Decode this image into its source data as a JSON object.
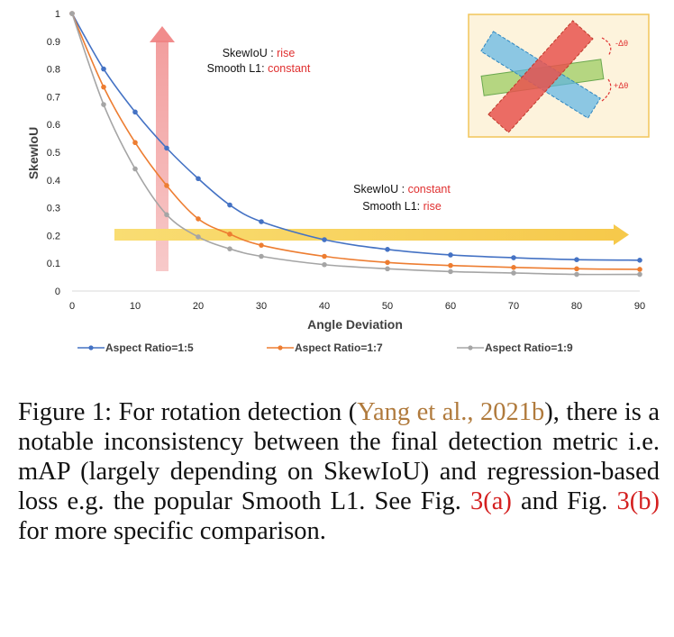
{
  "chart_data": {
    "type": "line",
    "x": [
      0,
      5,
      10,
      15,
      20,
      25,
      30,
      40,
      50,
      60,
      70,
      80,
      90
    ],
    "series": [
      {
        "name": "Aspect Ratio=1:5",
        "color": "#4472c4",
        "values": [
          1,
          0.8,
          0.645,
          0.515,
          0.405,
          0.31,
          0.25,
          0.185,
          0.15,
          0.13,
          0.12,
          0.113,
          0.111
        ]
      },
      {
        "name": "Aspect Ratio=1:7",
        "color": "#ed7d31",
        "values": [
          1,
          0.735,
          0.535,
          0.38,
          0.26,
          0.205,
          0.165,
          0.125,
          0.103,
          0.092,
          0.085,
          0.08,
          0.078
        ]
      },
      {
        "name": "Aspect Ratio=1:9",
        "color": "#a5a5a5",
        "values": [
          1,
          0.672,
          0.44,
          0.275,
          0.195,
          0.152,
          0.125,
          0.095,
          0.08,
          0.07,
          0.065,
          0.06,
          0.06
        ]
      }
    ],
    "xlabel": "Angle Deviation",
    "ylabel": "SkewIoU",
    "xlim": [
      0,
      90
    ],
    "ylim": [
      0,
      1
    ],
    "xticks": [
      "0",
      "10",
      "20",
      "30",
      "40",
      "50",
      "60",
      "70",
      "80",
      "90"
    ],
    "yticks": [
      "0",
      "0.1",
      "0.2",
      "0.3",
      "0.4",
      "0.5",
      "0.6",
      "0.7",
      "0.8",
      "0.9",
      "1"
    ],
    "legend_position": "bottom",
    "annotations": {
      "vertical": {
        "label1": "SkewIoU : ",
        "value1": "rise",
        "label2": "Smooth L1: ",
        "value2": "constant"
      },
      "horizontal": {
        "label1": "SkewIoU : ",
        "value1": "constant",
        "label2": "Smooth L1: ",
        "value2": "rise"
      },
      "inset": {
        "delta_minus": "-Δθ",
        "delta_plus": "+Δθ"
      }
    }
  },
  "caption": {
    "figure_label": "Figure 1:",
    "text1": " For rotation detection (",
    "citation": "Yang et al., 2021b",
    "text2": "), there is a notable inconsistency between the final detection metric i.e. mAP (largely depending on SkewIoU) and regression-based loss e.g. the popular Smooth L1. See Fig. ",
    "ref_a": "3(a)",
    "text3": " and Fig. ",
    "ref_b": "3(b)",
    "text4": " for more specific comparison."
  }
}
